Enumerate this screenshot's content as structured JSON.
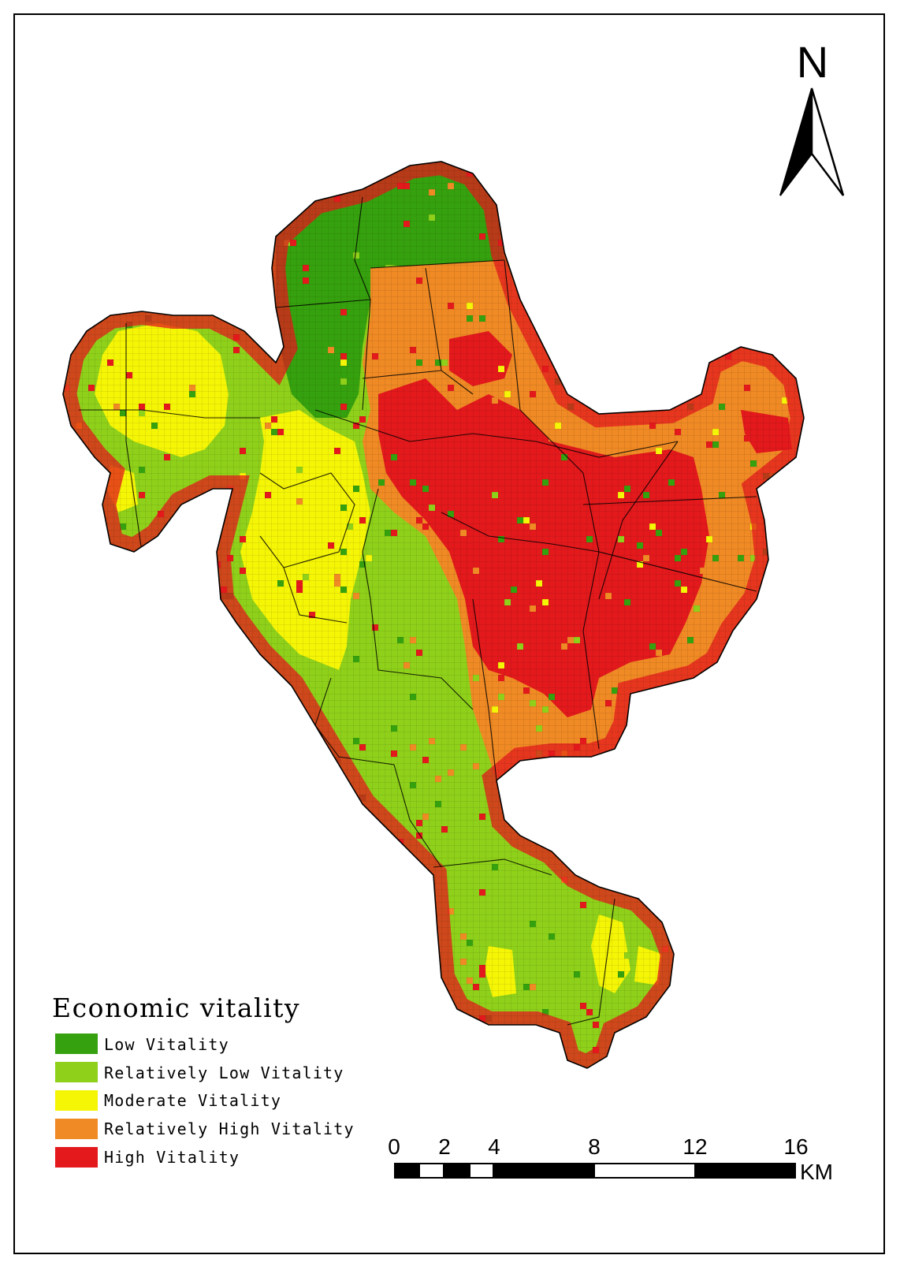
{
  "north_arrow": {
    "label": "N"
  },
  "legend": {
    "title": "Economic vitality",
    "items": [
      {
        "label": "Low Vitality",
        "color": "#36a10e"
      },
      {
        "label": "Relatively Low Vitality",
        "color": "#8fd11a"
      },
      {
        "label": "Moderate Vitality",
        "color": "#f5f506"
      },
      {
        "label": "Relatively High Vitality",
        "color": "#f08a24"
      },
      {
        "label": "High Vitality",
        "color": "#e3191c"
      }
    ]
  },
  "scale_bar": {
    "labels": [
      "0",
      "2",
      "4",
      "8",
      "12",
      "16"
    ],
    "unit": "KM"
  }
}
